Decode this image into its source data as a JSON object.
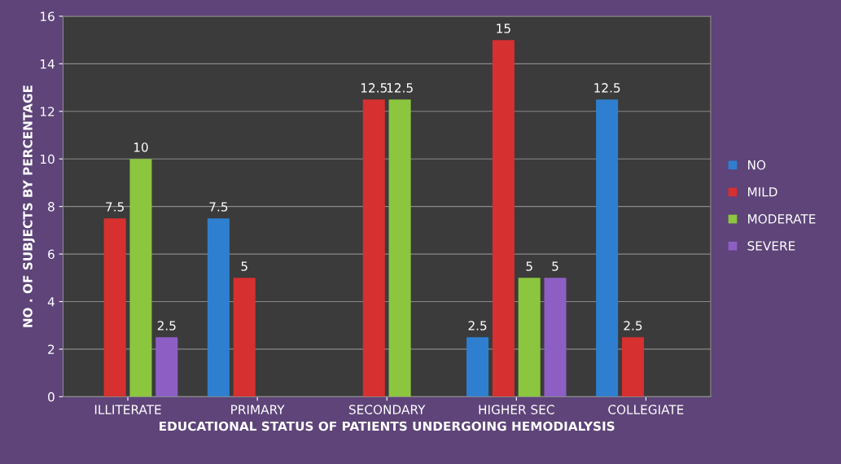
{
  "chart_data": {
    "type": "bar",
    "xlabel": "EDUCATIONAL STATUS OF PATIENTS UNDERGOING HEMODIALYSIS",
    "ylabel": "NO . OF SUBJECTS BY PERCENTAGE",
    "categories": [
      "ILLITERATE",
      "PRIMARY",
      "SECONDARY",
      "HIGHER SEC",
      "COLLEGIATE"
    ],
    "series": [
      {
        "name": "NO",
        "color": "#2f7fd0",
        "values": [
          null,
          7.5,
          null,
          2.5,
          12.5
        ]
      },
      {
        "name": "MILD",
        "color": "#d63030",
        "values": [
          7.5,
          5,
          12.5,
          15,
          2.5
        ]
      },
      {
        "name": "MODERATE",
        "color": "#8cc63f",
        "values": [
          10,
          null,
          12.5,
          5,
          null
        ]
      },
      {
        "name": "SEVERE",
        "color": "#8d5fc4",
        "values": [
          2.5,
          null,
          null,
          5,
          null
        ]
      }
    ],
    "ylim": [
      0,
      16
    ],
    "yticks": [
      0,
      2,
      4,
      6,
      8,
      10,
      12,
      14,
      16
    ],
    "grid": "y",
    "legend": "right",
    "data_labels": true
  }
}
